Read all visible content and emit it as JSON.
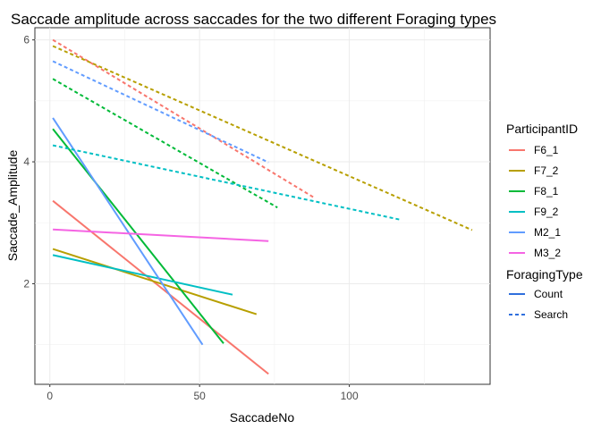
{
  "chart_data": {
    "type": "line",
    "title": "Saccade amplitude across saccades for the two different Foraging types",
    "xlabel": "SaccadeNo",
    "ylabel": "Saccade_Amplitude",
    "xlim": [
      -5,
      147
    ],
    "ylim": [
      0.35,
      6.2
    ],
    "xticks": [
      0,
      50,
      100
    ],
    "yticks": [
      2,
      4,
      6
    ],
    "xtick_labels": [
      "0",
      "50",
      "100"
    ],
    "ytick_labels": [
      "2",
      "4",
      "6"
    ],
    "grid": true,
    "legend_placement": "right",
    "legend_colour": {
      "title": "ParticipantID",
      "entries": [
        "F6_1",
        "F7_2",
        "F8_1",
        "F9_2",
        "M2_1",
        "M3_2"
      ]
    },
    "legend_linetype": {
      "title": "ForagingType",
      "entries": [
        "Count",
        "Search"
      ]
    },
    "colors": {
      "F6_1": "#F8766D",
      "F7_2": "#B79F00",
      "F8_1": "#00BA38",
      "F9_2": "#00BFC4",
      "M2_1": "#619CFF",
      "M3_2": "#F564E3"
    },
    "series": [
      {
        "participant": "F6_1",
        "type": "Count",
        "x": [
          1,
          73
        ],
        "y": [
          3.36,
          0.52
        ]
      },
      {
        "participant": "F7_2",
        "type": "Count",
        "x": [
          1,
          69
        ],
        "y": [
          2.57,
          1.5
        ]
      },
      {
        "participant": "F8_1",
        "type": "Count",
        "x": [
          1,
          58
        ],
        "y": [
          4.54,
          1.02
        ]
      },
      {
        "participant": "F9_2",
        "type": "Count",
        "x": [
          1,
          61
        ],
        "y": [
          2.47,
          1.82
        ]
      },
      {
        "participant": "M2_1",
        "type": "Count",
        "x": [
          1,
          51
        ],
        "y": [
          4.72,
          1.0
        ]
      },
      {
        "participant": "M3_2",
        "type": "Count",
        "x": [
          1,
          73
        ],
        "y": [
          2.89,
          2.7
        ]
      },
      {
        "participant": "F6_1",
        "type": "Search",
        "x": [
          1,
          88
        ],
        "y": [
          6.0,
          3.42
        ]
      },
      {
        "participant": "F7_2",
        "type": "Search",
        "x": [
          1,
          141
        ],
        "y": [
          5.9,
          2.88
        ]
      },
      {
        "participant": "F8_1",
        "type": "Search",
        "x": [
          1,
          76
        ],
        "y": [
          5.36,
          3.25
        ]
      },
      {
        "participant": "F9_2",
        "type": "Search",
        "x": [
          1,
          117
        ],
        "y": [
          4.27,
          3.05
        ]
      },
      {
        "participant": "M2_1",
        "type": "Search",
        "x": [
          1,
          73
        ],
        "y": [
          5.65,
          3.99
        ]
      }
    ]
  }
}
